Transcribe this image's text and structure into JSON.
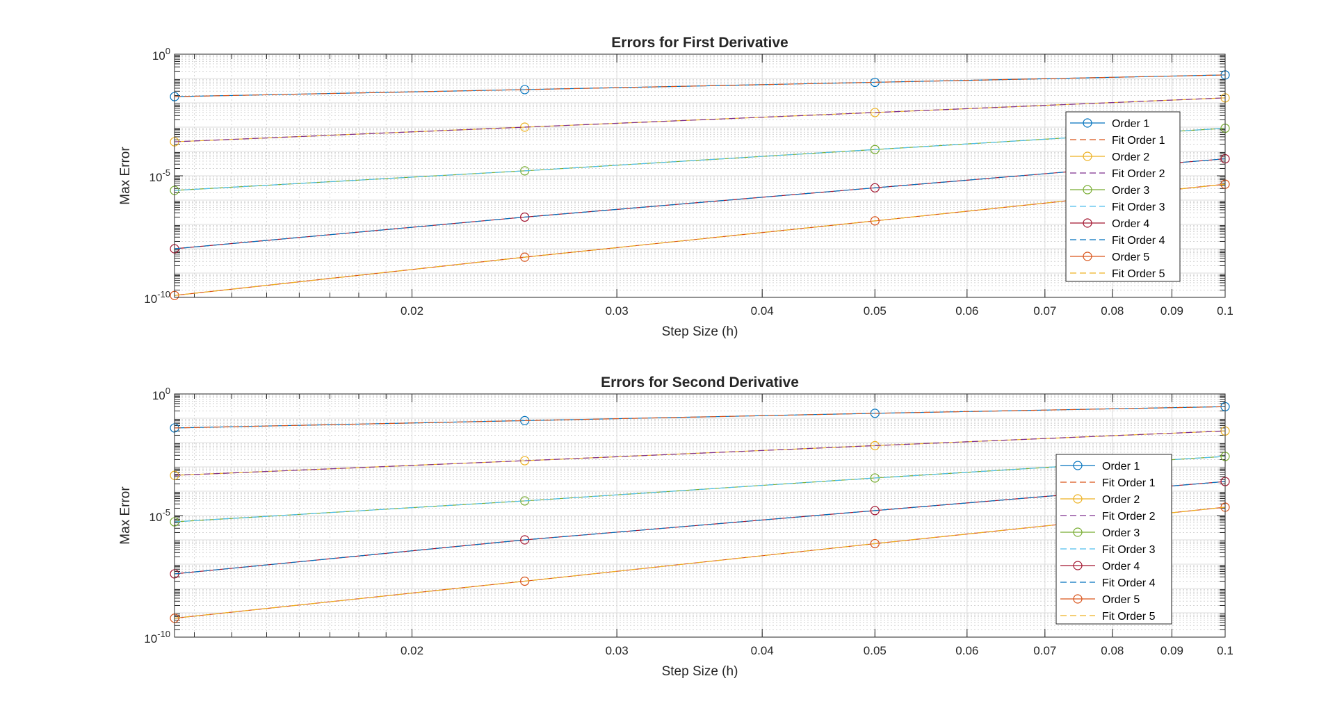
{
  "figure": {
    "background": "#ffffff"
  },
  "chart_data": [
    {
      "type": "line",
      "title": "Errors for First Derivative",
      "xlabel": "Step Size (h)",
      "ylabel": "Max Error",
      "xscale": "log",
      "yscale": "log",
      "xlim": [
        0.0125,
        0.1
      ],
      "ylim": [
        1e-10,
        1
      ],
      "grid": true,
      "minor_grid": true,
      "legend_position": "right, inside axes",
      "x": [
        0.0125,
        0.025,
        0.05,
        0.1
      ],
      "xtick_labels": [
        "0.02",
        "0.03",
        "0.04",
        "0.05",
        "0.06",
        "0.07",
        "0.08",
        "0.09",
        "0.1"
      ],
      "xtick_values": [
        0.02,
        0.03,
        0.04,
        0.05,
        0.06,
        0.07,
        0.08,
        0.09,
        0.1
      ],
      "ytick_labels": [
        {
          "base": "10",
          "exp": "0",
          "value": 1
        },
        {
          "base": "10",
          "exp": "-5",
          "value": 1e-05
        },
        {
          "base": "10",
          "exp": "-10",
          "value": 1e-10
        }
      ],
      "series": [
        {
          "name": "Order 1",
          "style": "solid-marker",
          "color": "#0072BD",
          "values": [
            0.018,
            0.035,
            0.07,
            0.14
          ]
        },
        {
          "name": "Fit Order 1",
          "style": "dashed",
          "color": "#D95319",
          "values": [
            0.018,
            0.035,
            0.07,
            0.14
          ]
        },
        {
          "name": "Order 2",
          "style": "solid-marker",
          "color": "#EDB120",
          "values": [
            0.00025,
            0.001,
            0.004,
            0.016
          ]
        },
        {
          "name": "Fit Order 2",
          "style": "dashed",
          "color": "#7E2F8E",
          "values": [
            0.00025,
            0.001,
            0.004,
            0.016
          ]
        },
        {
          "name": "Order 3",
          "style": "solid-marker",
          "color": "#77AC30",
          "values": [
            2.5e-06,
            1.6e-05,
            0.00012,
            0.0009
          ]
        },
        {
          "name": "Fit Order 3",
          "style": "dashed",
          "color": "#4DBEEE",
          "values": [
            2.5e-06,
            1.6e-05,
            0.00012,
            0.0009
          ]
        },
        {
          "name": "Order 4",
          "style": "solid-marker",
          "color": "#A2142F",
          "values": [
            1e-08,
            2e-07,
            3.2e-06,
            5e-05
          ]
        },
        {
          "name": "Fit Order 4",
          "style": "dashed",
          "color": "#0072BD",
          "values": [
            1e-08,
            2e-07,
            3.2e-06,
            5e-05
          ]
        },
        {
          "name": "Order 5",
          "style": "solid-marker",
          "color": "#D95319",
          "values": [
            1.2e-10,
            4.5e-09,
            1.4e-07,
            4.5e-06
          ]
        },
        {
          "name": "Fit Order 5",
          "style": "dashed",
          "color": "#EDB120",
          "values": [
            1.2e-10,
            4.5e-09,
            1.4e-07,
            4.5e-06
          ]
        }
      ]
    },
    {
      "type": "line",
      "title": "Errors for Second Derivative",
      "xlabel": "Step Size (h)",
      "ylabel": "Max Error",
      "xscale": "log",
      "yscale": "log",
      "xlim": [
        0.0125,
        0.1
      ],
      "ylim": [
        1e-10,
        1
      ],
      "grid": true,
      "minor_grid": true,
      "legend_position": "right, inside axes",
      "x": [
        0.0125,
        0.025,
        0.05,
        0.1
      ],
      "xtick_labels": [
        "0.02",
        "0.03",
        "0.04",
        "0.05",
        "0.06",
        "0.07",
        "0.08",
        "0.09",
        "0.1"
      ],
      "xtick_values": [
        0.02,
        0.03,
        0.04,
        0.05,
        0.06,
        0.07,
        0.08,
        0.09,
        0.1
      ],
      "ytick_labels": [
        {
          "base": "10",
          "exp": "0",
          "value": 1
        },
        {
          "base": "10",
          "exp": "-5",
          "value": 1e-05
        },
        {
          "base": "10",
          "exp": "-10",
          "value": 1e-10
        }
      ],
      "series": [
        {
          "name": "Order 1",
          "style": "solid-marker",
          "color": "#0072BD",
          "values": [
            0.04,
            0.08,
            0.16,
            0.3
          ]
        },
        {
          "name": "Fit Order 1",
          "style": "dashed",
          "color": "#D95319",
          "values": [
            0.04,
            0.08,
            0.16,
            0.3
          ]
        },
        {
          "name": "Order 2",
          "style": "solid-marker",
          "color": "#EDB120",
          "values": [
            0.00045,
            0.0018,
            0.0075,
            0.03
          ]
        },
        {
          "name": "Fit Order 2",
          "style": "dashed",
          "color": "#7E2F8E",
          "values": [
            0.00045,
            0.0018,
            0.0075,
            0.03
          ]
        },
        {
          "name": "Order 3",
          "style": "solid-marker",
          "color": "#77AC30",
          "values": [
            5.5e-06,
            4e-05,
            0.00035,
            0.0027
          ]
        },
        {
          "name": "Fit Order 3",
          "style": "dashed",
          "color": "#4DBEEE",
          "values": [
            5.5e-06,
            4e-05,
            0.00035,
            0.0027
          ]
        },
        {
          "name": "Order 4",
          "style": "solid-marker",
          "color": "#A2142F",
          "values": [
            4e-08,
            1e-06,
            1.6e-05,
            0.00025
          ]
        },
        {
          "name": "Fit Order 4",
          "style": "dashed",
          "color": "#0072BD",
          "values": [
            4e-08,
            1e-06,
            1.6e-05,
            0.00025
          ]
        },
        {
          "name": "Order 5",
          "style": "solid-marker",
          "color": "#D95319",
          "values": [
            6e-10,
            2e-08,
            7e-07,
            2.2e-05
          ]
        },
        {
          "name": "Fit Order 5",
          "style": "dashed",
          "color": "#EDB120",
          "values": [
            6e-10,
            2e-08,
            7e-07,
            2.2e-05
          ]
        }
      ]
    }
  ]
}
